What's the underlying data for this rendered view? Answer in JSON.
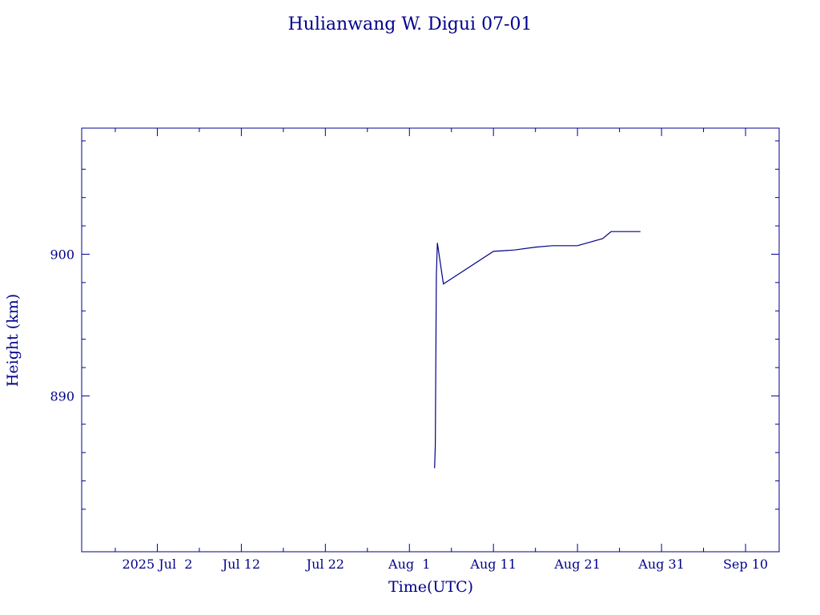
{
  "chart_data": {
    "type": "line",
    "title": "Hulianwang W. Digui 07-01",
    "xlabel": "Time(UTC)",
    "ylabel": "Height (km)",
    "x_tick_labels": [
      "2025 Jul  2",
      "Jul 12",
      "Jul 22",
      "Aug  1",
      "Aug 11",
      "Aug 21",
      "Aug 31",
      "Sep 10"
    ],
    "x_ticks": [
      "2025-07-02",
      "2025-07-12",
      "2025-07-22",
      "2025-08-01",
      "2025-08-11",
      "2025-08-21",
      "2025-08-31",
      "2025-09-10"
    ],
    "xlim": [
      "2025-06-23",
      "2025-09-14"
    ],
    "y_tick_labels": [
      "890",
      "900"
    ],
    "y_ticks": [
      890,
      900
    ],
    "ylim": [
      879.0,
      908.9
    ],
    "grid": false,
    "color": "#00008b",
    "series": [
      {
        "x": [
          "2025-08-04T00:00",
          "2025-08-04T02:00",
          "2025-08-04T05:00",
          "2025-08-04T08:00",
          "2025-08-05T01:00",
          "2025-08-11T00:00",
          "2025-08-13T12:00",
          "2025-08-16T00:00",
          "2025-08-18T00:00",
          "2025-08-21T00:00",
          "2025-08-24T00:00",
          "2025-08-25T00:00",
          "2025-08-28T12:00"
        ],
        "y": [
          884.9,
          886.5,
          898.5,
          900.8,
          897.9,
          900.2,
          900.3,
          900.5,
          900.6,
          900.6,
          901.1,
          901.6,
          901.6
        ]
      }
    ]
  }
}
